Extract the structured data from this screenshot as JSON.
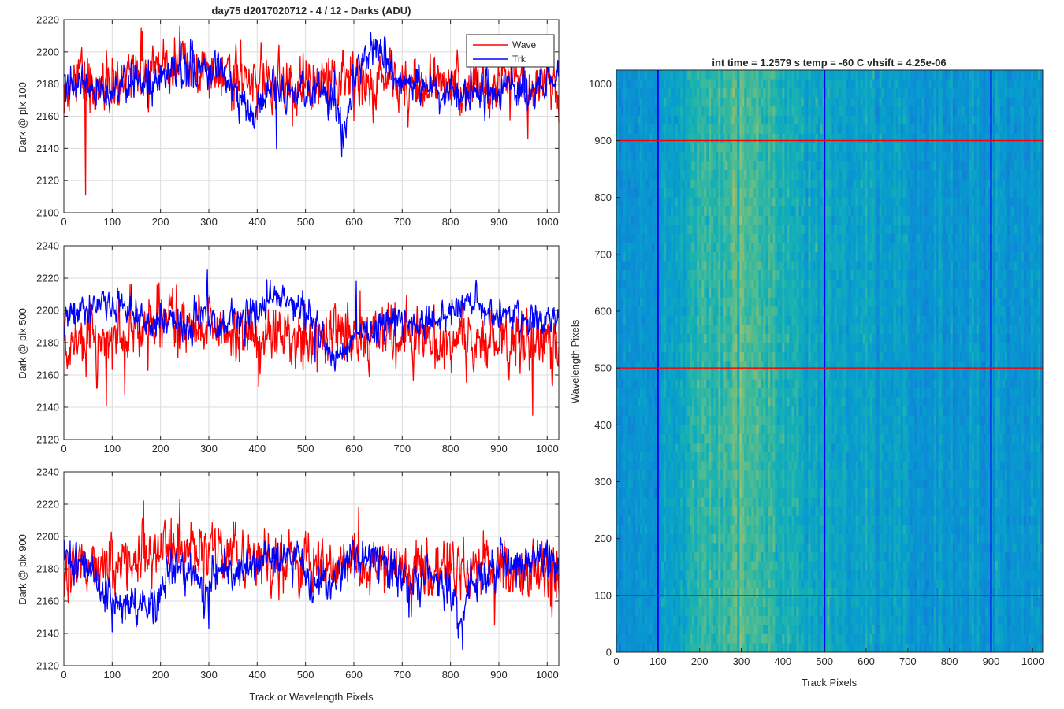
{
  "figure": {
    "title": "day75 d2017020712 - 4 / 12 - Darks (ADU)",
    "colors": {
      "wave": "#ff0000",
      "trk": "#0000ff",
      "grid": "#dcdcdc",
      "axis": "#262626"
    }
  },
  "chart_data": [
    {
      "type": "line",
      "title": "day75 d2017020712 - 4 / 12 - Darks (ADU)",
      "xlabel": "",
      "ylabel": "Dark @ pix 100",
      "xlim": [
        0,
        1024
      ],
      "ylim": [
        2100,
        2220
      ],
      "xticks": [
        "0",
        "100",
        "200",
        "300",
        "400",
        "500",
        "600",
        "700",
        "800",
        "900",
        "1000"
      ],
      "yticks": [
        "2100",
        "2120",
        "2140",
        "2160",
        "2180",
        "2200",
        "2220"
      ],
      "grid": true,
      "legend": {
        "placement": "top-right",
        "entries": [
          "Wave",
          "Trk"
        ]
      },
      "series": [
        {
          "name": "Wave",
          "color": "#ff0000",
          "x": [
            0,
            40,
            80,
            120,
            160,
            200,
            240,
            280,
            320,
            360,
            400,
            440,
            480,
            520,
            560,
            600,
            640,
            680,
            720,
            760,
            800,
            840,
            880,
            920,
            960,
            1000,
            1024
          ],
          "values": [
            2180,
            2181,
            2181,
            2182,
            2187,
            2190,
            2193,
            2192,
            2188,
            2186,
            2183,
            2182,
            2181,
            2182,
            2183,
            2184,
            2182,
            2180,
            2179,
            2178,
            2179,
            2180,
            2180,
            2180,
            2180,
            2179,
            2178
          ],
          "noise": 9,
          "spikes": [
            [
              45,
              2111
            ],
            [
              105,
              2168
            ],
            [
              160,
              2215
            ],
            [
              240,
              2216
            ],
            [
              640,
              2156
            ],
            [
              960,
              2146
            ],
            [
              1024,
              2156
            ]
          ]
        },
        {
          "name": "Trk",
          "color": "#0000ff",
          "x": [
            0,
            40,
            80,
            120,
            160,
            200,
            240,
            280,
            320,
            360,
            380,
            400,
            420,
            440,
            470,
            500,
            530,
            560,
            580,
            600,
            620,
            640,
            660,
            680,
            720,
            760,
            800,
            840,
            880,
            920,
            960,
            1000,
            1024
          ],
          "values": [
            2185,
            2180,
            2175,
            2180,
            2180,
            2182,
            2186,
            2190,
            2188,
            2174,
            2165,
            2166,
            2174,
            2180,
            2176,
            2172,
            2180,
            2166,
            2154,
            2180,
            2196,
            2203,
            2198,
            2185,
            2180,
            2178,
            2176,
            2172,
            2178,
            2178,
            2176,
            2178,
            2180
          ],
          "noise": 6,
          "spikes": [
            [
              95,
              2162
            ],
            [
              175,
              2195
            ],
            [
              303,
              2192
            ],
            [
              440,
              2140
            ],
            [
              575,
              2135
            ],
            [
              645,
              2208
            ],
            [
              1024,
              2188
            ]
          ]
        }
      ]
    },
    {
      "type": "line",
      "xlabel": "",
      "ylabel": "Dark @ pix 500",
      "xlim": [
        0,
        1024
      ],
      "ylim": [
        2120,
        2240
      ],
      "xticks": [
        "0",
        "100",
        "200",
        "300",
        "400",
        "500",
        "600",
        "700",
        "800",
        "900",
        "1000"
      ],
      "yticks": [
        "2120",
        "2140",
        "2160",
        "2180",
        "2200",
        "2220",
        "2240"
      ],
      "grid": true,
      "series": [
        {
          "name": "Wave",
          "color": "#ff0000",
          "x": [
            0,
            50,
            100,
            150,
            200,
            250,
            300,
            350,
            400,
            450,
            500,
            550,
            600,
            650,
            700,
            750,
            800,
            850,
            900,
            950,
            1000,
            1024
          ],
          "values": [
            2180,
            2178,
            2181,
            2185,
            2190,
            2192,
            2190,
            2186,
            2184,
            2184,
            2185,
            2186,
            2185,
            2183,
            2182,
            2182,
            2181,
            2180,
            2180,
            2178,
            2178,
            2177
          ],
          "noise": 9,
          "spikes": [
            [
              88,
              2141
            ],
            [
              126,
              2148
            ],
            [
              300,
              2208
            ],
            [
              685,
              2205
            ],
            [
              970,
              2135
            ],
            [
              1010,
              2155
            ]
          ]
        },
        {
          "name": "Trk",
          "color": "#0000ff",
          "x": [
            0,
            40,
            80,
            120,
            150,
            180,
            220,
            260,
            290,
            320,
            360,
            400,
            440,
            480,
            520,
            560,
            600,
            640,
            680,
            720,
            760,
            800,
            840,
            880,
            920,
            960,
            1000,
            1024
          ],
          "values": [
            2195,
            2201,
            2204,
            2205,
            2196,
            2192,
            2195,
            2190,
            2200,
            2190,
            2196,
            2201,
            2208,
            2204,
            2190,
            2172,
            2182,
            2190,
            2193,
            2192,
            2194,
            2200,
            2204,
            2200,
            2198,
            2192,
            2192,
            2196
          ],
          "noise": 5,
          "spikes": [
            [
              140,
              2216
            ],
            [
              297,
              2225
            ],
            [
              375,
              2178
            ],
            [
              420,
              2219
            ],
            [
              520,
              2168
            ],
            [
              605,
              2218
            ],
            [
              1024,
              2195
            ]
          ]
        }
      ]
    },
    {
      "type": "line",
      "xlabel": "Track or Wavelength Pixels",
      "ylabel": "Dark @ pix 900",
      "xlim": [
        0,
        1024
      ],
      "ylim": [
        2120,
        2240
      ],
      "xticks": [
        "0",
        "100",
        "200",
        "300",
        "400",
        "500",
        "600",
        "700",
        "800",
        "900",
        "1000"
      ],
      "yticks": [
        "2120",
        "2140",
        "2160",
        "2180",
        "2200",
        "2220",
        "2240"
      ],
      "grid": true,
      "series": [
        {
          "name": "Wave",
          "color": "#ff0000",
          "x": [
            0,
            50,
            100,
            150,
            200,
            250,
            300,
            350,
            400,
            450,
            500,
            550,
            600,
            650,
            700,
            750,
            800,
            850,
            900,
            950,
            1000,
            1024
          ],
          "values": [
            2180,
            2182,
            2183,
            2186,
            2192,
            2194,
            2193,
            2189,
            2186,
            2185,
            2184,
            2182,
            2181,
            2181,
            2180,
            2180,
            2180,
            2180,
            2180,
            2178,
            2177,
            2176
          ],
          "noise": 9,
          "spikes": [
            [
              165,
              2222
            ],
            [
              240,
              2223
            ],
            [
              610,
              2218
            ],
            [
              690,
              2175
            ],
            [
              820,
              2176
            ],
            [
              1010,
              2150
            ]
          ]
        },
        {
          "name": "Trk",
          "color": "#0000ff",
          "x": [
            0,
            30,
            60,
            100,
            140,
            180,
            220,
            260,
            290,
            320,
            360,
            400,
            440,
            480,
            520,
            560,
            600,
            640,
            680,
            720,
            760,
            800,
            820,
            840,
            880,
            920,
            960,
            1000,
            1024
          ],
          "values": [
            2186,
            2184,
            2178,
            2156,
            2160,
            2158,
            2180,
            2178,
            2168,
            2182,
            2176,
            2182,
            2188,
            2183,
            2170,
            2172,
            2188,
            2184,
            2182,
            2170,
            2176,
            2166,
            2148,
            2168,
            2180,
            2185,
            2183,
            2186,
            2183
          ],
          "noise": 6,
          "spikes": [
            [
              100,
              2141
            ],
            [
              185,
              2146
            ],
            [
              300,
              2143
            ],
            [
              450,
              2201
            ],
            [
              825,
              2130
            ],
            [
              1000,
              2198
            ]
          ]
        }
      ]
    },
    {
      "type": "heatmap",
      "title": "int time = 1.2579 s    temp = -60 C    vhsift = 4.25e-06",
      "xlabel": "Track Pixels",
      "ylabel": "Wavelength Pixels",
      "xlim": [
        0,
        1024
      ],
      "ylim": [
        0,
        1024
      ],
      "xticks": [
        "0",
        "100",
        "200",
        "300",
        "400",
        "500",
        "600",
        "700",
        "800",
        "900",
        "1000"
      ],
      "yticks": [
        "0",
        "100",
        "200",
        "300",
        "400",
        "500",
        "600",
        "700",
        "800",
        "900",
        "1000"
      ],
      "colormap": "parula",
      "column_profile": {
        "x": [
          0,
          80,
          160,
          220,
          280,
          340,
          400,
          460,
          540,
          640,
          760,
          880,
          1024
        ],
        "level": [
          0.45,
          0.47,
          0.56,
          0.64,
          0.68,
          0.66,
          0.61,
          0.55,
          0.52,
          0.5,
          0.48,
          0.47,
          0.46
        ]
      },
      "vertical_markers": {
        "color": "#0000ff",
        "x": [
          100,
          500,
          900
        ]
      },
      "horizontal_markers": {
        "color": "#ff0000",
        "y": [
          100,
          500,
          900
        ]
      }
    }
  ]
}
